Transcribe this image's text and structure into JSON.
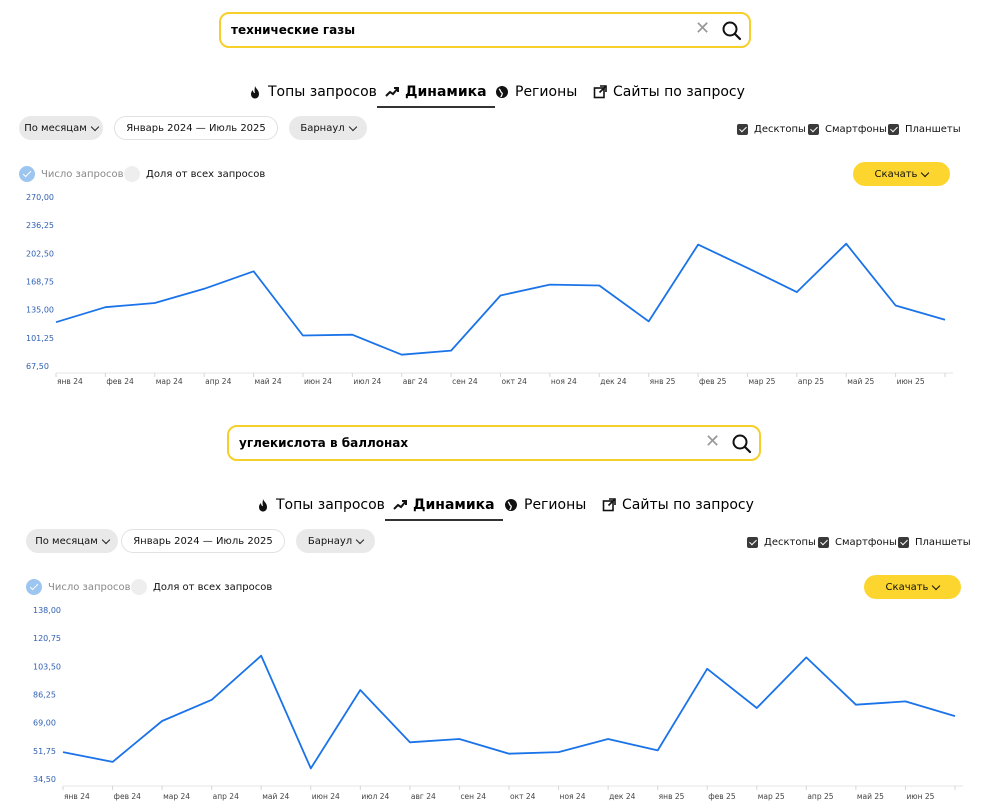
{
  "tabs": {
    "tops": "Топы запросов",
    "dynamics": "Динамика",
    "regions": "Регионы",
    "sites": "Сайты по запросу"
  },
  "filters": {
    "period": "По месяцам",
    "range": "Январь 2024 — Июль 2025",
    "region": "Барнаул"
  },
  "devices": {
    "desktop": "Десктопы",
    "phones": "Смартфоны",
    "tablets": "Планшеты"
  },
  "metrics": {
    "count": "Число запросов",
    "share": "Доля от всех запросов"
  },
  "download": "Скачать",
  "colors": {
    "line": "#1a73e8",
    "axis_label": "#2f5fb3",
    "accent": "#fcd52f"
  },
  "panels": [
    {
      "query": "технические газы",
      "chart_data": {
        "type": "line",
        "categories": [
          "янв 24",
          "фев 24",
          "мар 24",
          "апр 24",
          "май 24",
          "июн 24",
          "июл 24",
          "авг 24",
          "сен 24",
          "окт 24",
          "ноя 24",
          "дек 24",
          "янв 25",
          "фев 25",
          "мар 25",
          "апр 25",
          "май 25",
          "июн 25",
          ""
        ],
        "values": [
          120,
          138,
          143,
          160,
          181,
          104,
          105,
          81,
          86,
          152,
          165,
          164,
          121,
          213,
          185,
          156,
          214,
          140,
          123
        ],
        "yticks": [
          "270,00",
          "236,25",
          "202,50",
          "168,75",
          "135,00",
          "101,25",
          "67,50"
        ],
        "ylim": [
          67.5,
          270
        ]
      }
    },
    {
      "query": "углекислота в баллонах",
      "chart_data": {
        "type": "line",
        "categories": [
          "янв 24",
          "фев 24",
          "мар 24",
          "апр 24",
          "май 24",
          "июн 24",
          "июл 24",
          "авг 24",
          "сен 24",
          "окт 24",
          "ноя 24",
          "дек 24",
          "янв 25",
          "фев 25",
          "мар 25",
          "апр 25",
          "май 25",
          "июн 25",
          ""
        ],
        "values": [
          51,
          45,
          70,
          83,
          110,
          41,
          89,
          57,
          59,
          50,
          51,
          59,
          52,
          102,
          78,
          109,
          80,
          82,
          73
        ],
        "yticks": [
          "138,00",
          "120,75",
          "103,50",
          "86,25",
          "69,00",
          "51,75",
          "34,50"
        ],
        "ylim": [
          34.5,
          138
        ]
      }
    }
  ]
}
